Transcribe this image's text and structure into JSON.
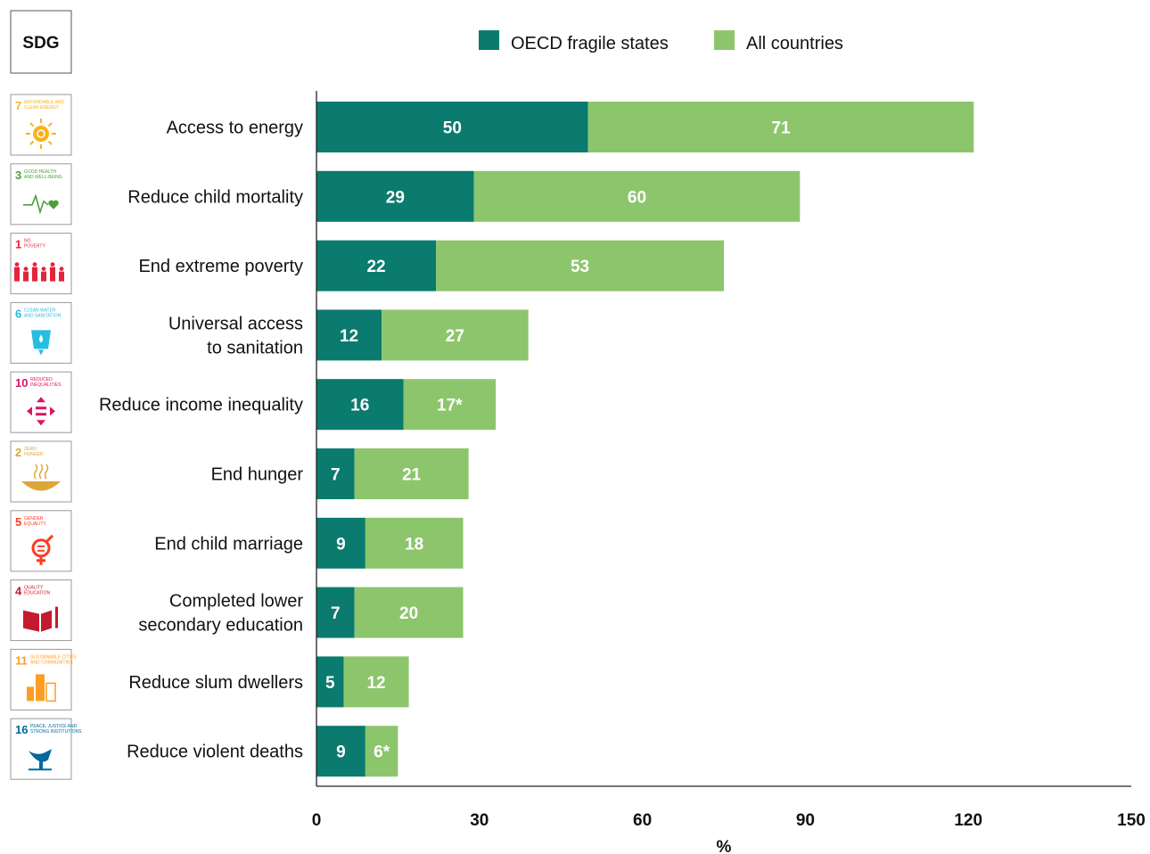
{
  "sdg_header": "SDG",
  "chart_data": {
    "type": "bar",
    "orientation": "horizontal",
    "stacked": true,
    "categories": [
      "Access to energy",
      "Reduce child mortality",
      "End extreme poverty",
      "Universal access to sanitation",
      "Reduce income inequality",
      "End hunger",
      "End child marriage",
      "Completed lower secondary education",
      "Reduce slum dwellers",
      "Reduce violent deaths"
    ],
    "category_lines": [
      [
        "Access to energy"
      ],
      [
        "Reduce child mortality"
      ],
      [
        "End extreme poverty"
      ],
      [
        "Universal access",
        "to sanitation"
      ],
      [
        "Reduce income inequality"
      ],
      [
        "End hunger"
      ],
      [
        "End child marriage"
      ],
      [
        "Completed lower",
        "secondary education"
      ],
      [
        "Reduce slum dwellers"
      ],
      [
        "Reduce violent deaths"
      ]
    ],
    "series": [
      {
        "name": "OECD fragile states",
        "color": "#0a7b6e",
        "values": [
          50,
          29,
          22,
          12,
          16,
          7,
          9,
          7,
          5,
          9
        ],
        "labels": [
          "50",
          "29",
          "22",
          "12",
          "16",
          "7",
          "9",
          "7",
          "5",
          "9"
        ]
      },
      {
        "name": "All countries",
        "color": "#8dc56c",
        "values": [
          71,
          60,
          53,
          27,
          17,
          21,
          18,
          20,
          12,
          6
        ],
        "labels": [
          "71",
          "60",
          "53",
          "27",
          "17*",
          "21",
          "18",
          "20",
          "12",
          "6*"
        ]
      }
    ],
    "xlabel": "%",
    "xlim": [
      0,
      150
    ],
    "xticks": [
      0,
      30,
      60,
      90,
      120,
      150
    ],
    "legend_position": "top",
    "grid": false
  },
  "sdg_icons": [
    {
      "goal": "7",
      "title": "AFFORDABLE AND CLEAN ENERGY",
      "icon": "sun-power-icon",
      "color": "#f9b21a"
    },
    {
      "goal": "3",
      "title": "GOOD HEALTH AND WELL-BEING",
      "icon": "heartbeat-icon",
      "color": "#4c9f38"
    },
    {
      "goal": "1",
      "title": "NO POVERTY",
      "icon": "family-icon",
      "color": "#e5243b"
    },
    {
      "goal": "6",
      "title": "CLEAN WATER AND SANITATION",
      "icon": "water-glass-icon",
      "color": "#26bde2"
    },
    {
      "goal": "10",
      "title": "REDUCED INEQUALITIES",
      "icon": "equality-arrows-icon",
      "color": "#dd1367"
    },
    {
      "goal": "2",
      "title": "ZERO HUNGER",
      "icon": "bowl-icon",
      "color": "#dda63a"
    },
    {
      "goal": "5",
      "title": "GENDER EQUALITY",
      "icon": "gender-symbol-icon",
      "color": "#ff3a21"
    },
    {
      "goal": "4",
      "title": "QUALITY EDUCATION",
      "icon": "book-pencil-icon",
      "color": "#c5192d"
    },
    {
      "goal": "11",
      "title": "SUSTAINABLE CITIES AND COMMUNITIES",
      "icon": "city-buildings-icon",
      "color": "#fd9d24"
    },
    {
      "goal": "16",
      "title": "PEACE, JUSTICE AND STRONG INSTITUTIONS",
      "icon": "dove-gavel-icon",
      "color": "#00689d"
    }
  ]
}
